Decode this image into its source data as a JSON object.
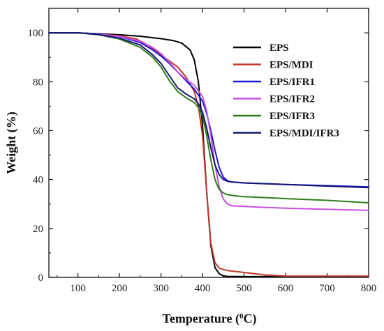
{
  "chart_data": {
    "type": "line",
    "xlabel": "Temperature (",
    "xlabel_sup": "0",
    "xlabel_suffix": "C)",
    "ylabel": "Weight (%)",
    "xlim": [
      30,
      800
    ],
    "ylim": [
      0,
      110
    ],
    "xticks": [
      100,
      200,
      300,
      400,
      500,
      600,
      700,
      800
    ],
    "yticks": [
      0,
      20,
      40,
      60,
      80,
      100
    ],
    "grid": false,
    "legend_position": "top-right",
    "series": [
      {
        "name": "EPS",
        "color": "#000000",
        "x": [
          30,
          100,
          150,
          200,
          250,
          300,
          330,
          350,
          370,
          380,
          390,
          400,
          410,
          420,
          430,
          440,
          450,
          460,
          500,
          600,
          700,
          800
        ],
        "y": [
          100,
          100,
          99.6,
          99.2,
          98.6,
          97.6,
          96.8,
          95.8,
          93,
          89,
          80,
          62,
          35,
          13,
          4,
          1.5,
          0.6,
          0.4,
          0.3,
          0.3,
          0.3,
          0.3
        ]
      },
      {
        "name": "EPS/MDI",
        "color": "#c0392b",
        "x": [
          30,
          100,
          150,
          200,
          240,
          260,
          280,
          300,
          320,
          340,
          360,
          380,
          390,
          400,
          410,
          420,
          430,
          440,
          450,
          460,
          480,
          500,
          550,
          600,
          700,
          800
        ],
        "y": [
          100,
          100,
          99.4,
          98.8,
          97.5,
          95.8,
          93.5,
          91,
          88.5,
          86,
          82,
          76,
          70,
          58,
          35,
          14,
          6,
          3.8,
          3.2,
          2.8,
          2.4,
          2,
          1,
          0.5,
          0.5,
          0.5
        ]
      },
      {
        "name": "EPS/IFR1",
        "color": "#1a1ad6",
        "x": [
          30,
          100,
          150,
          200,
          250,
          280,
          300,
          320,
          340,
          360,
          380,
          400,
          410,
          420,
          430,
          440,
          450,
          460,
          470,
          500,
          550,
          600,
          700,
          800
        ],
        "y": [
          100,
          100,
          99.5,
          98.5,
          96,
          93,
          90.5,
          87.5,
          84,
          80.5,
          77,
          72,
          67,
          60,
          52,
          45,
          41,
          39.5,
          39,
          38.6,
          38.3,
          38,
          37.5,
          37
        ]
      },
      {
        "name": "EPS/IFR2",
        "color": "#c84fe0",
        "x": [
          30,
          100,
          150,
          200,
          250,
          280,
          300,
          320,
          340,
          360,
          380,
          400,
          410,
          420,
          430,
          440,
          450,
          460,
          470,
          500,
          550,
          600,
          700,
          800
        ],
        "y": [
          100,
          100,
          99.4,
          98.6,
          96.5,
          94,
          91.5,
          88,
          84,
          81,
          78.5,
          74,
          68,
          58,
          46,
          37,
          32,
          30,
          29.3,
          29,
          28.6,
          28.3,
          27.8,
          27.4
        ]
      },
      {
        "name": "EPS/IFR3",
        "color": "#2e7d1a",
        "x": [
          30,
          100,
          150,
          200,
          250,
          280,
          300,
          320,
          340,
          360,
          380,
          390,
          400,
          410,
          420,
          430,
          440,
          450,
          460,
          480,
          500,
          600,
          700,
          800
        ],
        "y": [
          100,
          100,
          99.2,
          97.5,
          94,
          90,
          86,
          80.5,
          76,
          73.5,
          71.5,
          69.5,
          66,
          58,
          48,
          40,
          36,
          34.5,
          33.8,
          33.3,
          33,
          32.2,
          31.5,
          30.5
        ]
      },
      {
        "name": "EPS/MDI/IFR3",
        "color": "#14166e",
        "x": [
          30,
          100,
          150,
          200,
          250,
          280,
          300,
          320,
          340,
          360,
          380,
          390,
          400,
          410,
          420,
          430,
          440,
          450,
          460,
          470,
          500,
          600,
          700,
          800
        ],
        "y": [
          100,
          100,
          99.3,
          97.8,
          95,
          91,
          87.5,
          82.5,
          77.5,
          75,
          73,
          71,
          67.5,
          61,
          53,
          46,
          42,
          40,
          39.3,
          39,
          38.6,
          38,
          37.3,
          36.7
        ]
      }
    ]
  }
}
